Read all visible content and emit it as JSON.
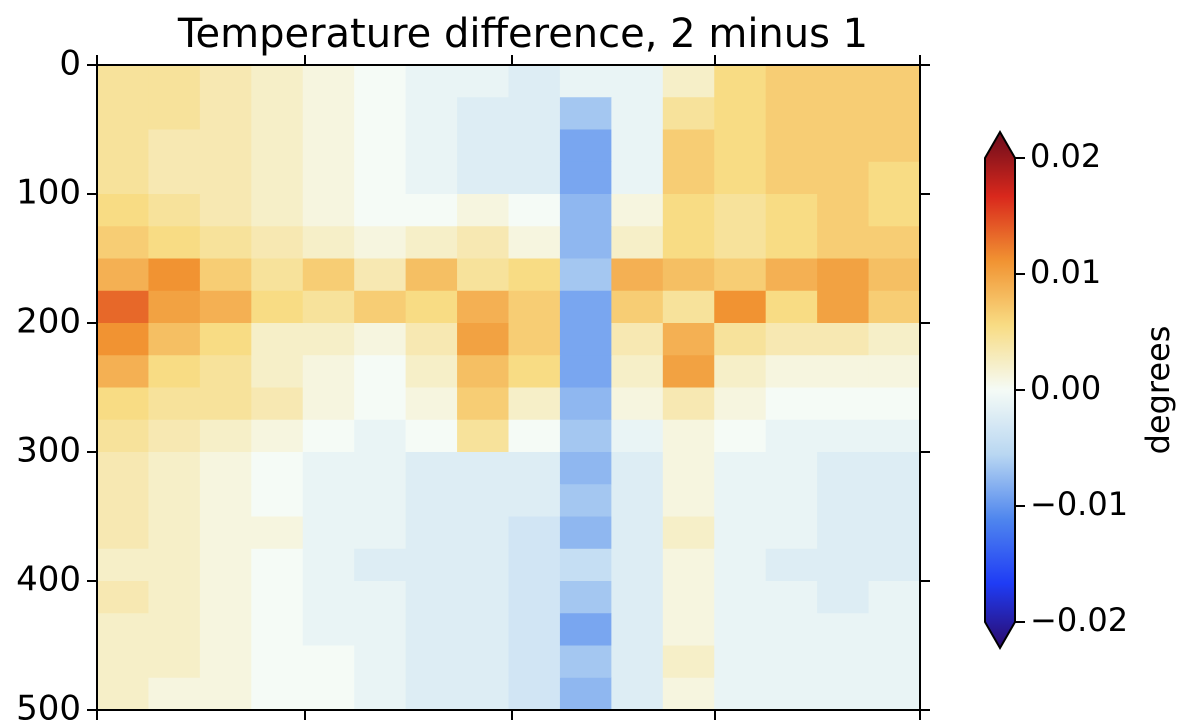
{
  "chart_data": {
    "type": "heatmap",
    "title": "Temperature difference, 2 minus 1",
    "ylim": [
      500,
      0
    ],
    "yticks": [
      0,
      100,
      200,
      300,
      400,
      500
    ],
    "clim": [
      -0.02,
      0.02
    ],
    "cticks": [
      {
        "value": -0.02,
        "label": "−0.02"
      },
      {
        "value": -0.01,
        "label": "−0.01"
      },
      {
        "value": 0,
        "label": "0.00"
      },
      0.01,
      0.02
    ],
    "colorbar_label": "degrees",
    "colormap": [
      "#2b0a6b",
      "#1f3cf5",
      "#4f86ee",
      "#b9d7f2",
      "#f5fbf6",
      "#f8dc84",
      "#f19332",
      "#d9281c",
      "#6a0c1c"
    ],
    "values": [
      [
        0.004,
        0.004,
        0.003,
        0.002,
        0.001,
        0,
        -0.001,
        -0.001,
        -0.002,
        -0.001,
        -0.001,
        0.002,
        0.005,
        0.006,
        0.006,
        0.006
      ],
      [
        0.004,
        0.004,
        0.003,
        0.002,
        0.001,
        0,
        -0.001,
        -0.002,
        -0.002,
        -0.006,
        -0.001,
        0.004,
        0.005,
        0.006,
        0.006,
        0.006
      ],
      [
        0.004,
        0.003,
        0.003,
        0.002,
        0.001,
        0,
        -0.001,
        -0.002,
        -0.002,
        -0.008,
        -0.001,
        0.006,
        0.005,
        0.006,
        0.006,
        0.006
      ],
      [
        0.004,
        0.003,
        0.003,
        0.002,
        0.001,
        0,
        -0.001,
        -0.002,
        -0.002,
        -0.008,
        -0.001,
        0.006,
        0.005,
        0.006,
        0.006,
        0.005
      ],
      [
        0.005,
        0.004,
        0.003,
        0.002,
        0.001,
        0,
        0,
        0.001,
        0,
        -0.007,
        0.001,
        0.005,
        0.004,
        0.005,
        0.006,
        0.005
      ],
      [
        0.006,
        0.005,
        0.004,
        0.003,
        0.002,
        0.001,
        0.002,
        0.003,
        0.001,
        -0.007,
        0.002,
        0.005,
        0.004,
        0.005,
        0.006,
        0.006
      ],
      [
        0.008,
        0.01,
        0.006,
        0.004,
        0.006,
        0.003,
        0.007,
        0.004,
        0.005,
        -0.006,
        0.008,
        0.007,
        0.006,
        0.008,
        0.009,
        0.007
      ],
      [
        0.012,
        0.009,
        0.008,
        0.005,
        0.004,
        0.006,
        0.005,
        0.008,
        0.006,
        -0.008,
        0.006,
        0.004,
        0.01,
        0.005,
        0.009,
        0.006
      ],
      [
        0.01,
        0.007,
        0.005,
        0.002,
        0.002,
        0.001,
        0.003,
        0.009,
        0.006,
        -0.008,
        0.003,
        0.008,
        0.004,
        0.003,
        0.003,
        0.002
      ],
      [
        0.008,
        0.005,
        0.004,
        0.002,
        0.001,
        0,
        0.002,
        0.007,
        0.005,
        -0.008,
        0.002,
        0.009,
        0.002,
        0.001,
        0.001,
        0.001
      ],
      [
        0.005,
        0.004,
        0.004,
        0.003,
        0.001,
        0,
        0.001,
        0.006,
        0.002,
        -0.007,
        0.001,
        0.003,
        0.001,
        0,
        0,
        0
      ],
      [
        0.004,
        0.003,
        0.002,
        0.001,
        0,
        -0.001,
        0,
        0.004,
        0,
        -0.006,
        -0.001,
        0.001,
        0,
        -0.001,
        -0.001,
        -0.001
      ],
      [
        0.003,
        0.002,
        0.001,
        0,
        -0.001,
        -0.001,
        -0.002,
        -0.002,
        -0.002,
        -0.007,
        -0.002,
        0.001,
        -0.001,
        -0.001,
        -0.002,
        -0.002
      ],
      [
        0.003,
        0.002,
        0.001,
        0,
        -0.001,
        -0.001,
        -0.002,
        -0.002,
        -0.002,
        -0.006,
        -0.002,
        0.001,
        -0.001,
        -0.001,
        -0.002,
        -0.002
      ],
      [
        0.003,
        0.002,
        0.001,
        0.001,
        -0.001,
        -0.001,
        -0.002,
        -0.002,
        -0.003,
        -0.007,
        -0.002,
        0.002,
        -0.001,
        -0.001,
        -0.002,
        -0.002
      ],
      [
        0.002,
        0.002,
        0.001,
        0,
        -0.001,
        -0.002,
        -0.002,
        -0.002,
        -0.003,
        -0.004,
        -0.002,
        0.001,
        -0.001,
        -0.002,
        -0.002,
        -0.002
      ],
      [
        0.003,
        0.002,
        0.001,
        0,
        -0.001,
        -0.001,
        -0.002,
        -0.002,
        -0.003,
        -0.006,
        -0.002,
        0.001,
        -0.001,
        -0.001,
        -0.002,
        -0.001
      ],
      [
        0.002,
        0.002,
        0.001,
        0,
        -0.001,
        -0.001,
        -0.002,
        -0.002,
        -0.003,
        -0.008,
        -0.002,
        0.001,
        -0.001,
        -0.001,
        -0.001,
        -0.001
      ],
      [
        0.002,
        0.002,
        0.001,
        0,
        0,
        -0.001,
        -0.002,
        -0.002,
        -0.003,
        -0.006,
        -0.002,
        0.002,
        -0.001,
        -0.001,
        -0.001,
        -0.001
      ],
      [
        0.002,
        0.001,
        0.001,
        0,
        0,
        -0.001,
        -0.002,
        -0.002,
        -0.003,
        -0.007,
        -0.002,
        0.001,
        -0.001,
        -0.001,
        -0.001,
        -0.001
      ]
    ]
  }
}
